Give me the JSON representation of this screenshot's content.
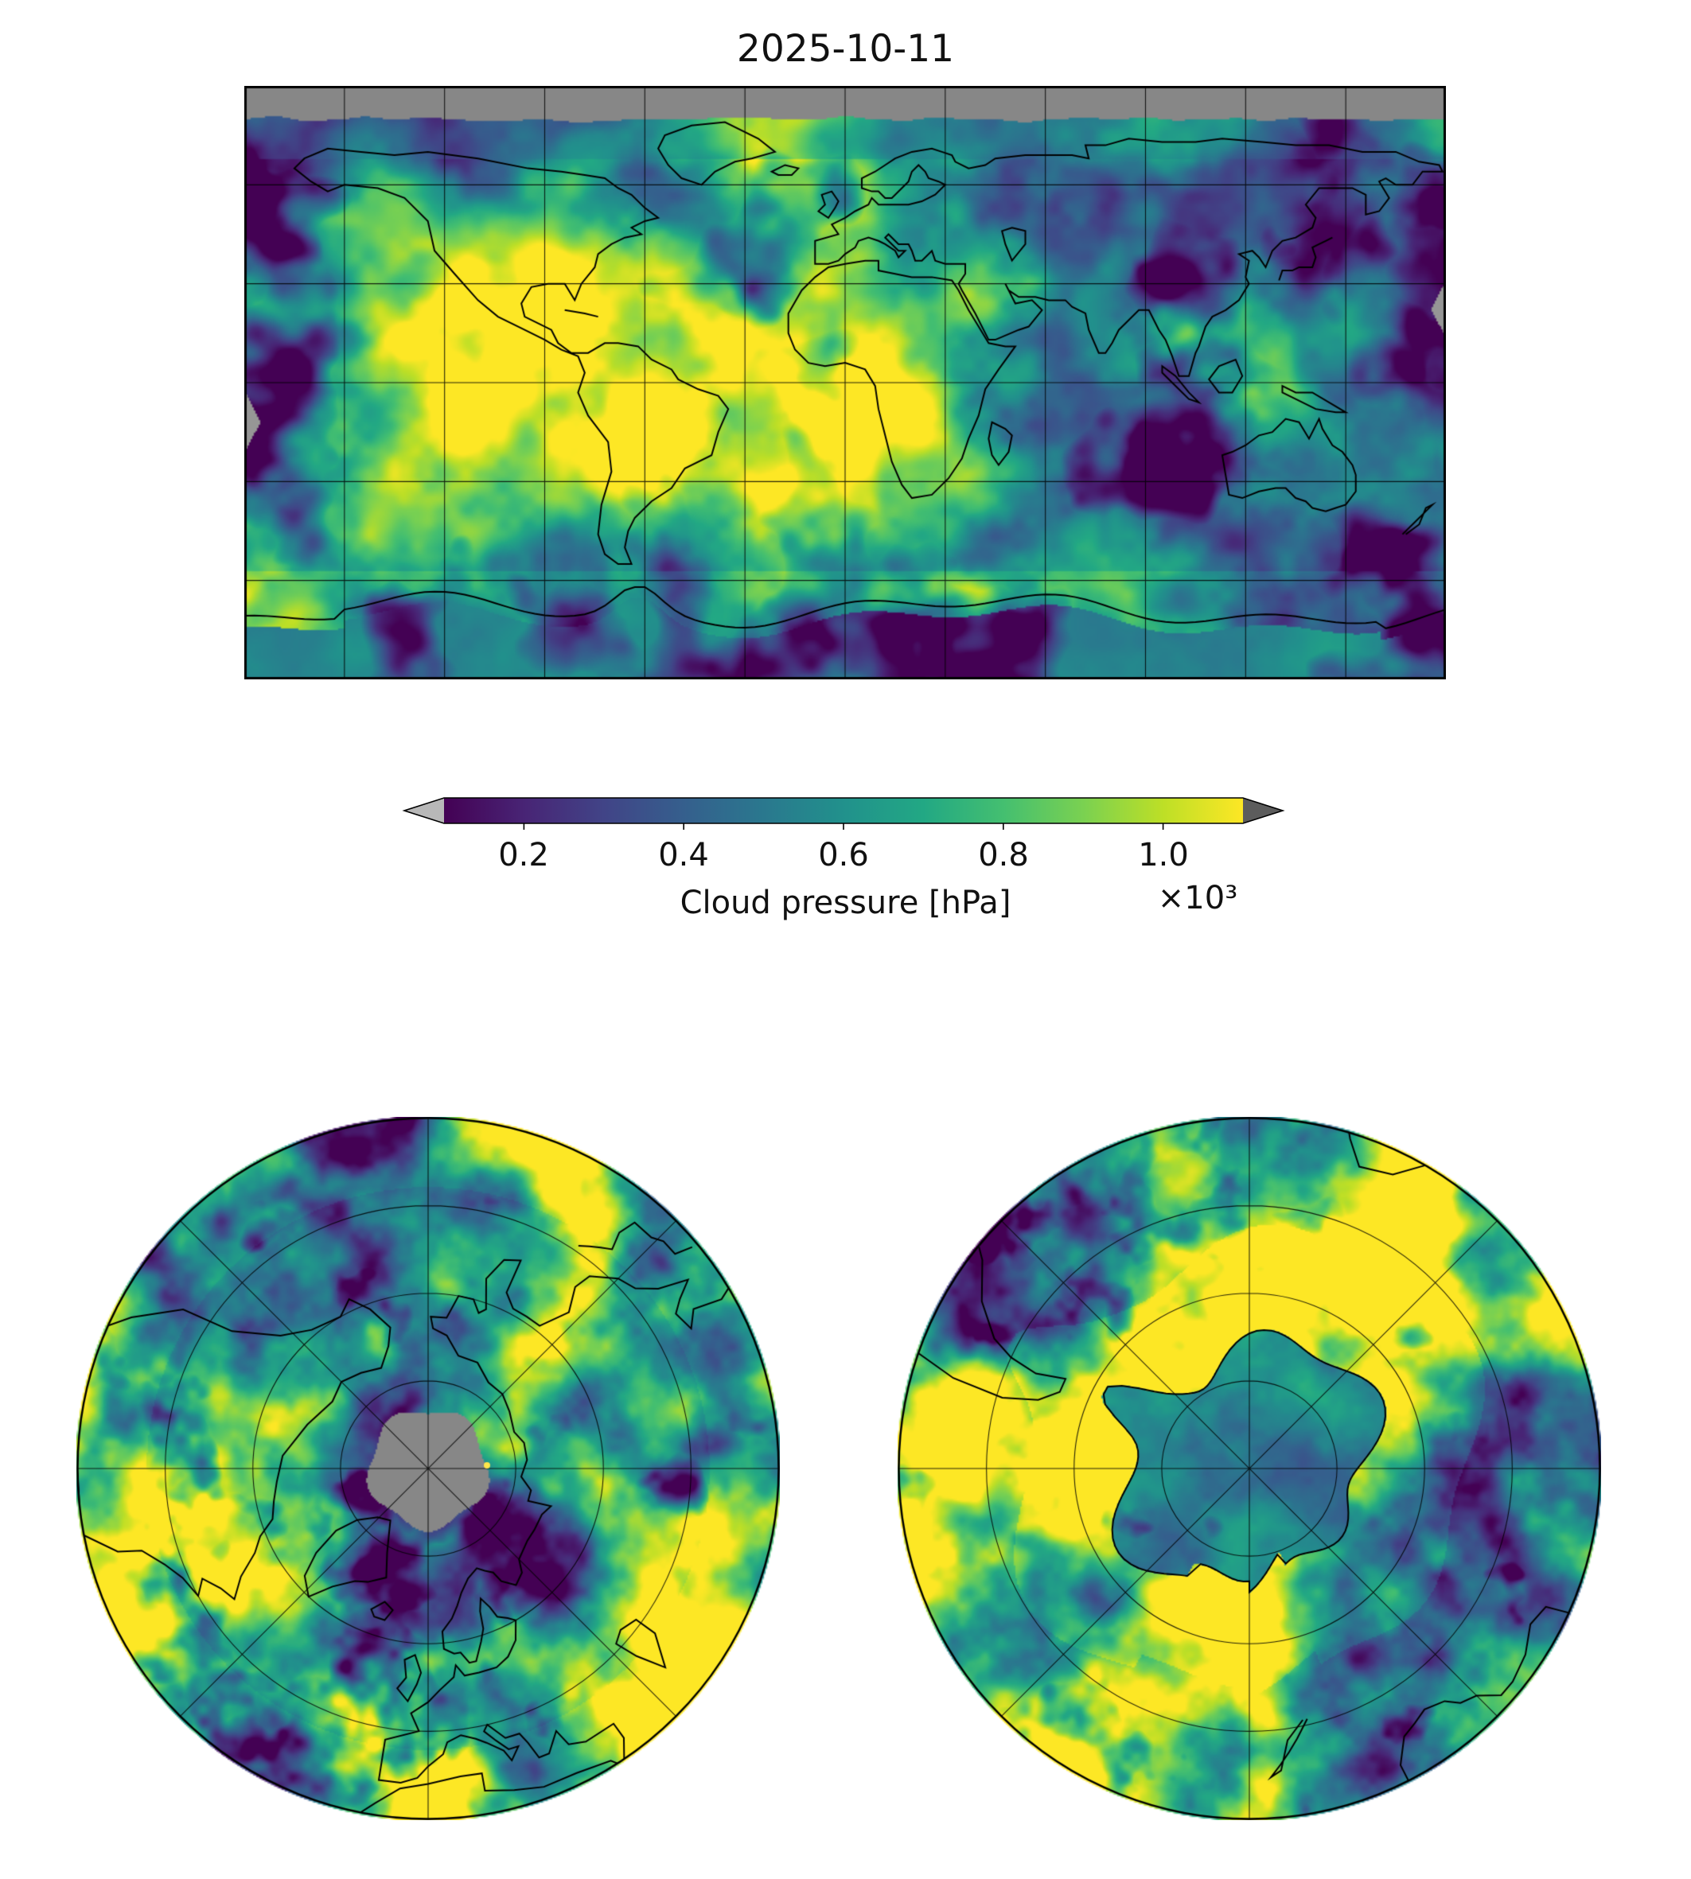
{
  "title": "2025-10-11",
  "colorbar": {
    "label": "Cloud pressure [hPa]",
    "scale": "×10³",
    "ticks": [
      "0.2",
      "0.4",
      "0.6",
      "0.8",
      "1.0"
    ]
  },
  "chart_data": {
    "type": "heatmap",
    "title": "2025-10-11",
    "variable": "Cloud pressure",
    "units": "hPa",
    "colormap": "viridis",
    "colorbar": {
      "orientation": "horizontal",
      "label": "Cloud pressure [hPa]",
      "tick_labels": [
        0.2,
        0.4,
        0.6,
        0.8,
        1.0
      ],
      "scale_factor": 1000,
      "value_range_hpa": [
        100,
        1100
      ],
      "extend": "both",
      "under_color": "#b8b8b8",
      "over_color": "#5c5c5c"
    },
    "panels": [
      {
        "name": "global",
        "projection": "equirectangular",
        "extent": "global",
        "gridline_spacing_deg": {
          "lon": 30,
          "lat": 30
        },
        "features": [
          "coastlines",
          "gridlines"
        ],
        "missing_data_color": "#878787",
        "missing_data_regions": [
          "strip north of ~80°N",
          "small swath gaps at left and right map edges"
        ],
        "value_summary_hpa": {
          "typical_background": 900,
          "cloud_systems": 250,
          "midrange": 600
        }
      },
      {
        "name": "north-polar",
        "projection": "polar stereographic (North Pole)",
        "outer_latitude_deg": 30,
        "latitude_circles_deg": [
          45,
          60,
          75
        ],
        "meridian_spacing_deg": 45,
        "missing_data": "gray circular gap over the pole",
        "features": [
          "coastlines",
          "gridlines"
        ]
      },
      {
        "name": "south-polar",
        "projection": "polar stereographic (South Pole)",
        "outer_latitude_deg": -30,
        "latitude_circles_deg": [
          -45,
          -60,
          -75
        ],
        "meridian_spacing_deg": 45,
        "notes": "Antarctica outlined; interior shows lower cloud pressure (teal/blue)",
        "features": [
          "coastlines",
          "gridlines"
        ]
      }
    ]
  }
}
